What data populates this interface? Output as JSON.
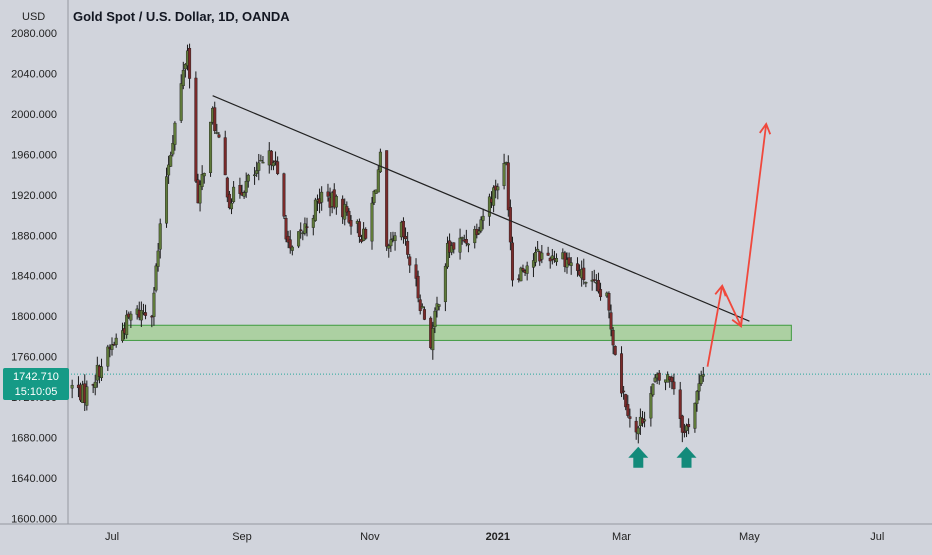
{
  "header": {
    "currency": "USD",
    "title": "Gold Spot / U.S. Dollar, 1D, OANDA"
  },
  "price_badge": {
    "price": "1742.710",
    "countdown": "15:10:05"
  },
  "colors": {
    "background": "#d1d4dc",
    "up_candle": "#5f7a3a",
    "down_candle": "#7a2a2a",
    "wick": "#1a1a1a",
    "trendline": "#222222",
    "support_zone_fill": "#9fcf8f",
    "support_zone_stroke": "#3f9a3f",
    "projection_arrows": "#f0483c",
    "signal_arrows": "#138a7a",
    "price_badge": "#159a86",
    "current_price_line": "#26a69a"
  },
  "chart_data": {
    "type": "candlestick",
    "title": "Gold Spot / U.S. Dollar, 1D, OANDA",
    "ylabel": "USD",
    "xlabel": "",
    "ylim": [
      1595,
      2095
    ],
    "yticks": [
      2080,
      2040,
      2000,
      1960,
      1920,
      1880,
      1840,
      1800,
      1760,
      1720,
      1680,
      1640,
      1600
    ],
    "ytick_labels": [
      "2080.000",
      "2040.000",
      "2000.000",
      "1960.000",
      "1920.000",
      "1880.000",
      "1840.000",
      "1800.000",
      "1760.000",
      "1720.000",
      "1680.000",
      "1640.000",
      "1600.000"
    ],
    "x_range": [
      "2020-06-10",
      "2021-07-20"
    ],
    "xticks": [
      {
        "date": "2020-07-01",
        "label": "Jul"
      },
      {
        "date": "2020-09-01",
        "label": "Sep"
      },
      {
        "date": "2020-11-01",
        "label": "Nov"
      },
      {
        "date": "2021-01-01",
        "label": "2021"
      },
      {
        "date": "2021-03-01",
        "label": "Mar"
      },
      {
        "date": "2021-05-01",
        "label": "May"
      },
      {
        "date": "2021-07-01",
        "label": "Jul"
      }
    ],
    "price_path": [
      {
        "date": "2020-06-12",
        "price": 1730
      },
      {
        "date": "2020-06-18",
        "price": 1722
      },
      {
        "date": "2020-06-24",
        "price": 1745
      },
      {
        "date": "2020-07-01",
        "price": 1770
      },
      {
        "date": "2020-07-10",
        "price": 1800
      },
      {
        "date": "2020-07-20",
        "price": 1808
      },
      {
        "date": "2020-07-27",
        "price": 1940
      },
      {
        "date": "2020-08-06",
        "price": 2065
      },
      {
        "date": "2020-08-11",
        "price": 1910
      },
      {
        "date": "2020-08-18",
        "price": 2000
      },
      {
        "date": "2020-08-26",
        "price": 1915
      },
      {
        "date": "2020-09-05",
        "price": 1935
      },
      {
        "date": "2020-09-16",
        "price": 1960
      },
      {
        "date": "2020-09-24",
        "price": 1860
      },
      {
        "date": "2020-10-09",
        "price": 1920
      },
      {
        "date": "2020-10-20",
        "price": 1905
      },
      {
        "date": "2020-10-30",
        "price": 1875
      },
      {
        "date": "2020-11-06",
        "price": 1955
      },
      {
        "date": "2020-11-09",
        "price": 1860
      },
      {
        "date": "2020-11-16",
        "price": 1885
      },
      {
        "date": "2020-11-30",
        "price": 1775
      },
      {
        "date": "2020-12-08",
        "price": 1865
      },
      {
        "date": "2020-12-20",
        "price": 1880
      },
      {
        "date": "2021-01-05",
        "price": 1950
      },
      {
        "date": "2021-01-08",
        "price": 1840
      },
      {
        "date": "2021-01-20",
        "price": 1860
      },
      {
        "date": "2021-02-01",
        "price": 1860
      },
      {
        "date": "2021-02-10",
        "price": 1840
      },
      {
        "date": "2021-02-22",
        "price": 1815
      },
      {
        "date": "2021-03-01",
        "price": 1730
      },
      {
        "date": "2021-03-08",
        "price": 1683
      },
      {
        "date": "2021-03-17",
        "price": 1735
      },
      {
        "date": "2021-03-25",
        "price": 1740
      },
      {
        "date": "2021-03-31",
        "price": 1683
      },
      {
        "date": "2021-04-09",
        "price": 1742
      }
    ],
    "current_price": 1742.71,
    "support_zone": {
      "from_date": "2020-07-06",
      "to_date": "2021-05-21",
      "low": 1776,
      "high": 1791
    },
    "trendline": {
      "from": {
        "date": "2020-08-18",
        "price": 2018
      },
      "to": {
        "date": "2021-05-01",
        "price": 1795
      }
    },
    "projection_arrows": [
      {
        "from": {
          "date": "2021-04-11",
          "price": 1750
        },
        "to": {
          "date": "2021-04-18",
          "price": 1830
        }
      },
      {
        "from": {
          "date": "2021-04-18",
          "price": 1830
        },
        "to": {
          "date": "2021-04-27",
          "price": 1790
        }
      },
      {
        "from": {
          "date": "2021-04-27",
          "price": 1790
        },
        "to": {
          "date": "2021-05-09",
          "price": 1990
        }
      }
    ],
    "signal_arrows": [
      {
        "date": "2021-03-09",
        "price": 1660
      },
      {
        "date": "2021-04-01",
        "price": 1660
      }
    ],
    "grid": false,
    "legend": "none"
  }
}
